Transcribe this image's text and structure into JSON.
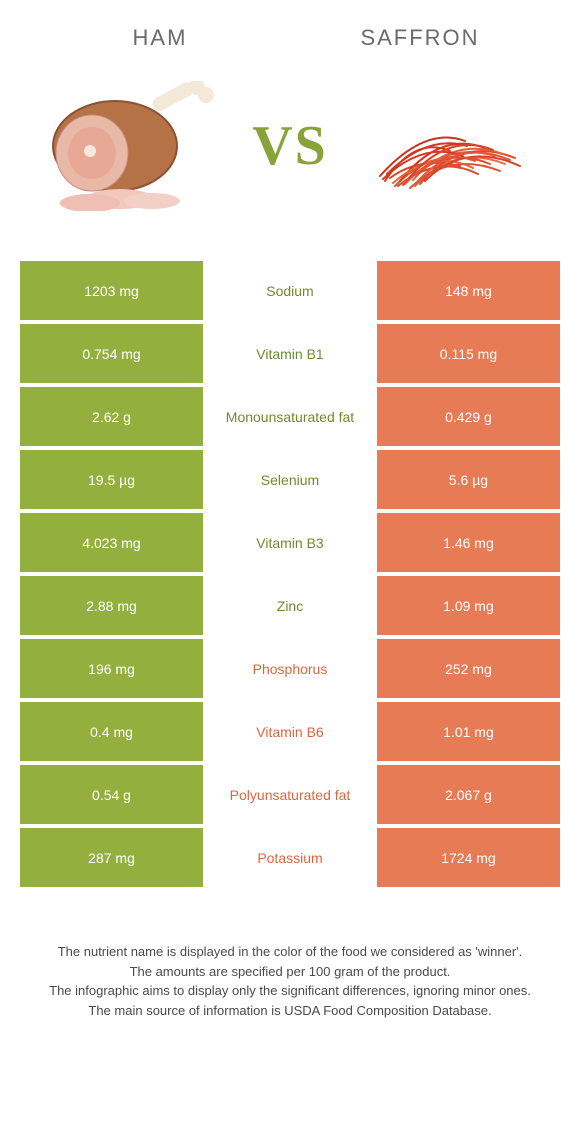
{
  "titles": {
    "left": "Ham",
    "right": "Saffron"
  },
  "vs_label": "VS",
  "colors": {
    "green": "#93b03f",
    "orange": "#e77b55",
    "green_text": "#6f8a2e",
    "orange_text": "#d96842"
  },
  "rows": [
    {
      "left": "1203 mg",
      "label": "Sodium",
      "right": "148 mg",
      "winner": "left"
    },
    {
      "left": "0.754 mg",
      "label": "Vitamin B1",
      "right": "0.115 mg",
      "winner": "left"
    },
    {
      "left": "2.62 g",
      "label": "Monounsaturated fat",
      "right": "0.429 g",
      "winner": "left"
    },
    {
      "left": "19.5 µg",
      "label": "Selenium",
      "right": "5.6 µg",
      "winner": "left"
    },
    {
      "left": "4.023 mg",
      "label": "Vitamin B3",
      "right": "1.46 mg",
      "winner": "left"
    },
    {
      "left": "2.88 mg",
      "label": "Zinc",
      "right": "1.09 mg",
      "winner": "left"
    },
    {
      "left": "196 mg",
      "label": "Phosphorus",
      "right": "252 mg",
      "winner": "right"
    },
    {
      "left": "0.4 mg",
      "label": "Vitamin B6",
      "right": "1.01 mg",
      "winner": "right"
    },
    {
      "left": "0.54 g",
      "label": "Polyunsaturated fat",
      "right": "2.067 g",
      "winner": "right"
    },
    {
      "left": "287 mg",
      "label": "Potassium",
      "right": "1724 mg",
      "winner": "right"
    }
  ],
  "footer_lines": [
    "The nutrient name is displayed in the color of the food we considered as 'winner'.",
    "The amounts are specified per 100 gram of the product.",
    "The infographic aims to display only the significant differences, ignoring minor ones.",
    "The main source of information is USDA Food Composition Database."
  ]
}
